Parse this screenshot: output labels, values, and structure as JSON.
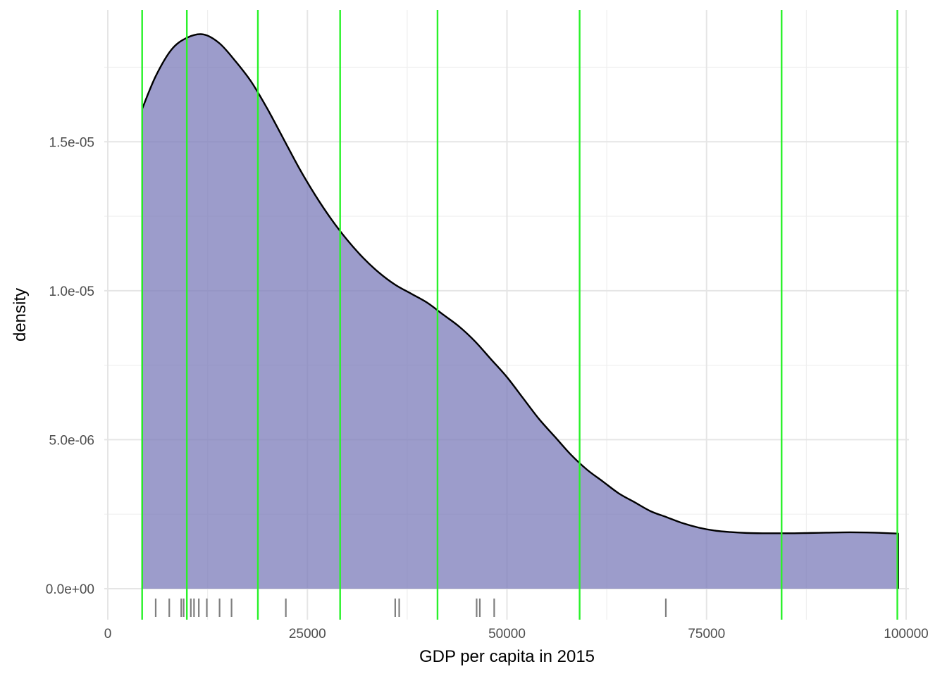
{
  "chart_data": {
    "type": "area",
    "xlabel": "GDP per capita in 2015",
    "ylabel": "density",
    "xlim": [
      0,
      100000
    ],
    "ylim": [
      0,
      1.9e-05
    ],
    "x_ticks": [
      0,
      25000,
      50000,
      75000,
      100000
    ],
    "x_tick_labels": [
      "0",
      "25000",
      "50000",
      "75000",
      "100000"
    ],
    "y_ticks": [
      0,
      5e-06,
      1e-05,
      1.5e-05
    ],
    "y_tick_labels": [
      "0.0e+00",
      "5.0e-06",
      "1.0e-05",
      "1.5e-05"
    ],
    "grid": true,
    "density": {
      "x": [
        4300,
        6000,
        8000,
        10000,
        12000,
        14000,
        16000,
        18000,
        20000,
        22000,
        24000,
        26000,
        28000,
        30000,
        32000,
        34000,
        36000,
        38000,
        40000,
        42000,
        44000,
        46000,
        48000,
        50000,
        52000,
        54000,
        56000,
        58000,
        60000,
        62000,
        64000,
        66000,
        68000,
        70000,
        72000,
        74000,
        76000,
        78000,
        80000,
        82000,
        84000,
        86000,
        88000,
        90000,
        92000,
        94000,
        96000,
        98000,
        99000
      ],
      "y": [
        1.61e-05,
        1.72e-05,
        1.81e-05,
        1.85e-05,
        1.86e-05,
        1.83e-05,
        1.77e-05,
        1.7e-05,
        1.61e-05,
        1.51e-05,
        1.41e-05,
        1.32e-05,
        1.24e-05,
        1.17e-05,
        1.11e-05,
        1.06e-05,
        1.02e-05,
        9.9e-06,
        9.6e-06,
        9.2e-06,
        8.8e-06,
        8.3e-06,
        7.7e-06,
        7.1e-06,
        6.4e-06,
        5.7e-06,
        5.1e-06,
        4.5e-06,
        4e-06,
        3.6e-06,
        3.2e-06,
        2.9e-06,
        2.6e-06,
        2.4e-06,
        2.2e-06,
        2.05e-06,
        1.95e-06,
        1.9e-06,
        1.87e-06,
        1.86e-06,
        1.86e-06,
        1.86e-06,
        1.87e-06,
        1.88e-06,
        1.89e-06,
        1.89e-06,
        1.88e-06,
        1.86e-06,
        1.85e-06
      ]
    },
    "quantile_lines_x": [
      4300,
      9900,
      18800,
      29100,
      41300,
      59100,
      84400,
      98900
    ],
    "rug_x": [
      6000,
      7700,
      9200,
      9500,
      10400,
      10800,
      11400,
      12400,
      14000,
      15500,
      22300,
      36000,
      36500,
      46200,
      46600,
      48400,
      69900
    ],
    "colors": {
      "fill": "#7b7bb9",
      "fill_opacity": 0.75,
      "outline": "#000000",
      "quantile_line": "#2af22a",
      "rug": "#7f7f7f",
      "grid_major": "#e5e5e5",
      "grid_minor": "#efefef"
    }
  }
}
